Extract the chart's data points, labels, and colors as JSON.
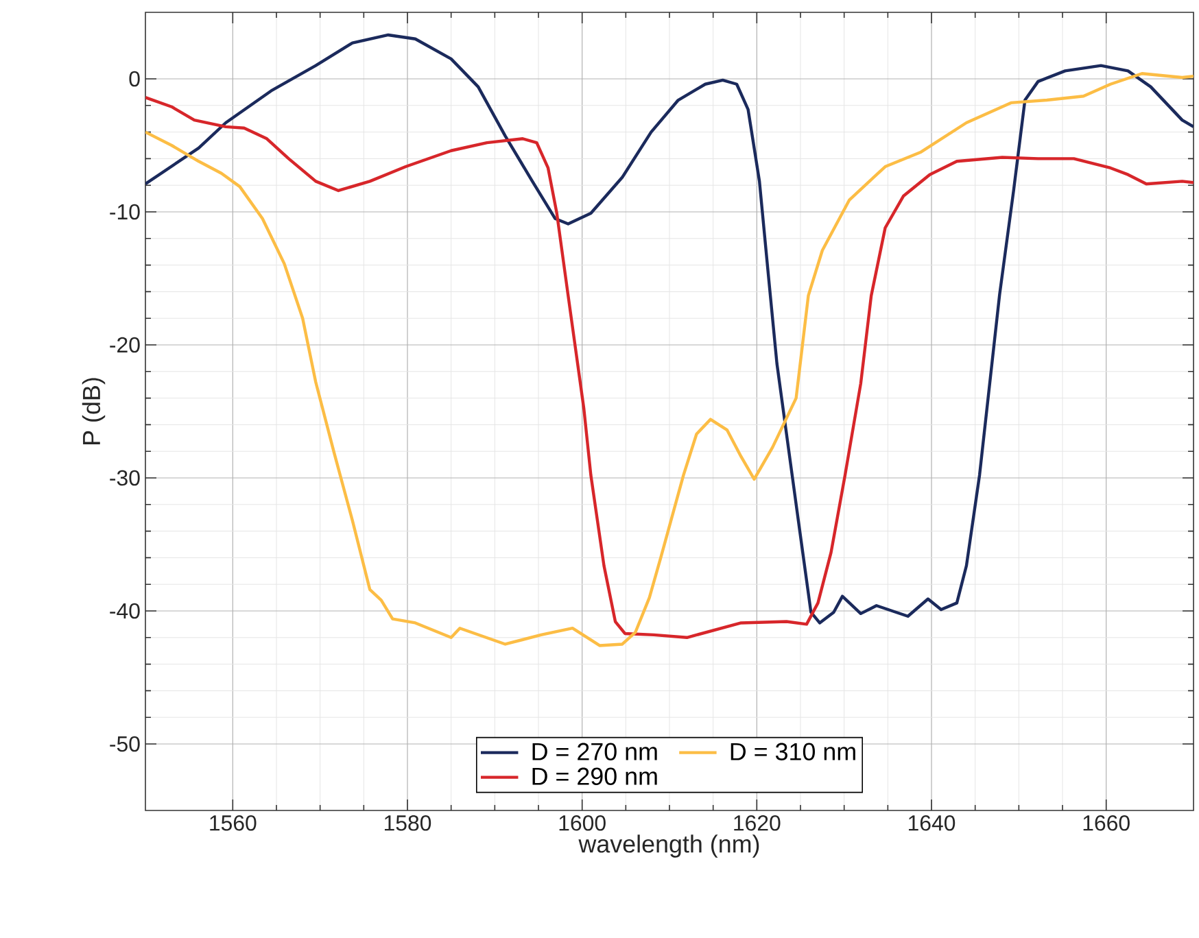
{
  "chart_data": {
    "type": "line",
    "xlabel": "wavelength (nm)",
    "ylabel": "P (dB)",
    "xlim": [
      1550,
      1670
    ],
    "ylim": [
      -55,
      5
    ],
    "xticks": [
      1560,
      1580,
      1600,
      1620,
      1640,
      1660
    ],
    "yticks": [
      -50,
      -40,
      -30,
      -20,
      -10,
      0
    ],
    "grid": true,
    "legend": "bottom",
    "line_style": "solid",
    "marker": "none",
    "series": [
      {
        "name": "D = 270 nm",
        "color": "#1b2a5c",
        "x": [
          1550,
          1556.1,
          1559.2,
          1564.4,
          1569.5,
          1573.7,
          1577.8,
          1580.9,
          1585,
          1588.1,
          1591.2,
          1594.3,
          1596.9,
          1598.4,
          1601,
          1604.6,
          1607.9,
          1611,
          1614.1,
          1616.1,
          1617.7,
          1619,
          1620.3,
          1621.3,
          1622.3,
          1623.9,
          1624.9,
          1626.2,
          1627.2,
          1628.8,
          1629.8,
          1631.9,
          1633.7,
          1637.3,
          1639.6,
          1641.1,
          1642.9,
          1644,
          1645.5,
          1647.8,
          1649.4,
          1650.7,
          1652.2,
          1655.3,
          1659.4,
          1662.5,
          1665.1,
          1668.7,
          1670
        ],
        "values": [
          -7.9,
          -5.2,
          -3.3,
          -0.9,
          1.0,
          2.7,
          3.3,
          3.0,
          1.5,
          -0.6,
          -4.3,
          -7.7,
          -10.5,
          -10.9,
          -10.1,
          -7.4,
          -4.0,
          -1.6,
          -0.4,
          -0.1,
          -0.4,
          -2.3,
          -7.7,
          -14.6,
          -21.4,
          -29.1,
          -33.9,
          -40.1,
          -40.9,
          -40.1,
          -38.9,
          -40.2,
          -39.6,
          -40.4,
          -39.1,
          -39.9,
          -39.4,
          -36.6,
          -29.8,
          -16.2,
          -8.4,
          -1.6,
          -0.2,
          0.6,
          1.0,
          0.6,
          -0.6,
          -3.1,
          -3.6
        ]
      },
      {
        "name": "D = 290 nm",
        "color": "#d7262a",
        "x": [
          1550,
          1553,
          1555.6,
          1559.2,
          1561.3,
          1563.9,
          1566.4,
          1569.5,
          1572.1,
          1575.7,
          1579.8,
          1585,
          1589.1,
          1593.2,
          1594.8,
          1596.1,
          1597.1,
          1598.4,
          1600.2,
          1601,
          1602.5,
          1603.8,
          1604.9,
          1608.2,
          1612,
          1618.2,
          1623.4,
          1625.7,
          1627,
          1628.5,
          1630.1,
          1631.9,
          1633.1,
          1634.7,
          1636.8,
          1639.8,
          1642.9,
          1648.1,
          1652.2,
          1656.3,
          1660.5,
          1662.5,
          1664.6,
          1668.7,
          1670
        ],
        "values": [
          -1.4,
          -2.1,
          -3.1,
          -3.6,
          -3.7,
          -4.5,
          -6.0,
          -7.7,
          -8.4,
          -7.7,
          -6.6,
          -5.4,
          -4.8,
          -4.5,
          -4.8,
          -6.7,
          -10.1,
          -16.3,
          -24.8,
          -29.8,
          -36.6,
          -40.8,
          -41.7,
          -41.8,
          -42.0,
          -40.9,
          -40.8,
          -41.0,
          -39.4,
          -35.6,
          -29.8,
          -22.9,
          -16.3,
          -11.2,
          -8.8,
          -7.2,
          -6.2,
          -5.9,
          -6.0,
          -6.0,
          -6.7,
          -7.2,
          -7.9,
          -7.7,
          -7.8
        ]
      },
      {
        "name": "D = 310 nm",
        "color": "#fcbd45",
        "x": [
          1550,
          1553,
          1556.1,
          1558.7,
          1560.8,
          1563.4,
          1565.9,
          1568,
          1569.5,
          1571.6,
          1573.7,
          1575.7,
          1577,
          1578.3,
          1580.9,
          1585,
          1586,
          1591.2,
          1595.3,
          1598.9,
          1602,
          1604.6,
          1606.1,
          1607.7,
          1609,
          1611.6,
          1613.1,
          1614.7,
          1616.6,
          1618.2,
          1619.7,
          1621.8,
          1624.5,
          1625.9,
          1627.5,
          1630.6,
          1634.7,
          1638.8,
          1644,
          1649.1,
          1653.2,
          1657.4,
          1660.5,
          1664.1,
          1668.7,
          1670
        ],
        "values": [
          -4.0,
          -5.0,
          -6.2,
          -7.1,
          -8.1,
          -10.5,
          -13.9,
          -18.0,
          -22.8,
          -28.1,
          -33.2,
          -38.4,
          -39.2,
          -40.6,
          -40.9,
          -42.0,
          -41.3,
          -42.5,
          -41.8,
          -41.3,
          -42.6,
          -42.5,
          -41.6,
          -39.0,
          -36.0,
          -29.8,
          -26.7,
          -25.6,
          -26.4,
          -28.4,
          -30.1,
          -27.7,
          -24.0,
          -16.3,
          -12.9,
          -9.1,
          -6.6,
          -5.5,
          -3.3,
          -1.8,
          -1.6,
          -1.3,
          -0.4,
          0.4,
          0.1,
          0.2
        ]
      }
    ]
  }
}
